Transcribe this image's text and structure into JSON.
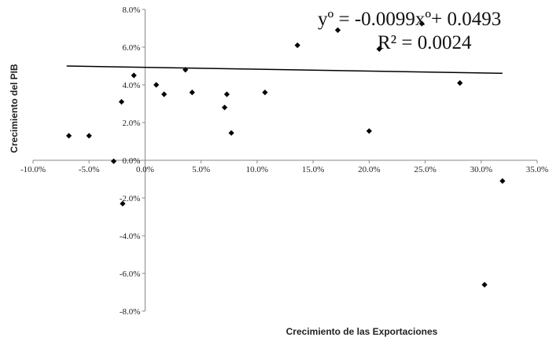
{
  "chart_data": {
    "type": "scatter",
    "xlabel": "Crecimiento de las Exportaciones",
    "ylabel": "Crecimiento del PIB",
    "xlim": [
      -0.1,
      0.35
    ],
    "ylim": [
      -0.08,
      0.08
    ],
    "x_ticks": [
      -0.1,
      -0.05,
      0.0,
      0.05,
      0.1,
      0.15,
      0.2,
      0.25,
      0.3,
      0.35
    ],
    "x_tick_labels": [
      "-10.0%",
      "-5.0%",
      "0.0%",
      "5.0%",
      "10.0%",
      "15.0%",
      "20.0%",
      "25.0%",
      "30.0%",
      "35.0%"
    ],
    "y_ticks": [
      0.08,
      0.06,
      0.04,
      0.02,
      0.0,
      -0.02,
      -0.04,
      -0.06,
      -0.08
    ],
    "y_tick_labels": [
      "8.0%",
      "6.0%",
      "4.0%",
      "2.0%",
      "0.0%",
      "-2.0%",
      "-4.0%",
      "-6.0%",
      "-8.0%"
    ],
    "grid": false,
    "legend": "none",
    "marker_color": "#000000",
    "points": [
      {
        "x": -0.068,
        "y": 0.013
      },
      {
        "x": -0.05,
        "y": 0.013
      },
      {
        "x": -0.028,
        "y": -0.0005
      },
      {
        "x": -0.021,
        "y": 0.031
      },
      {
        "x": -0.02,
        "y": -0.023
      },
      {
        "x": -0.01,
        "y": 0.045
      },
      {
        "x": 0.01,
        "y": 0.04
      },
      {
        "x": 0.017,
        "y": 0.035
      },
      {
        "x": 0.036,
        "y": 0.048
      },
      {
        "x": 0.042,
        "y": 0.036
      },
      {
        "x": 0.071,
        "y": 0.028
      },
      {
        "x": 0.073,
        "y": 0.035
      },
      {
        "x": 0.077,
        "y": 0.0145
      },
      {
        "x": 0.107,
        "y": 0.036
      },
      {
        "x": 0.136,
        "y": 0.061
      },
      {
        "x": 0.172,
        "y": 0.069
      },
      {
        "x": 0.2,
        "y": 0.0155
      },
      {
        "x": 0.209,
        "y": 0.059
      },
      {
        "x": 0.247,
        "y": 0.0725
      },
      {
        "x": 0.281,
        "y": 0.041
      },
      {
        "x": 0.303,
        "y": -0.066
      },
      {
        "x": 0.319,
        "y": -0.011
      }
    ],
    "trendline": {
      "slope": -0.0099,
      "intercept": 0.0493,
      "x_range": [
        -0.07,
        0.319
      ],
      "equation_text": "yº = -0.0099xº+ 0.0493",
      "r2_text": "R² = 0.0024"
    }
  }
}
